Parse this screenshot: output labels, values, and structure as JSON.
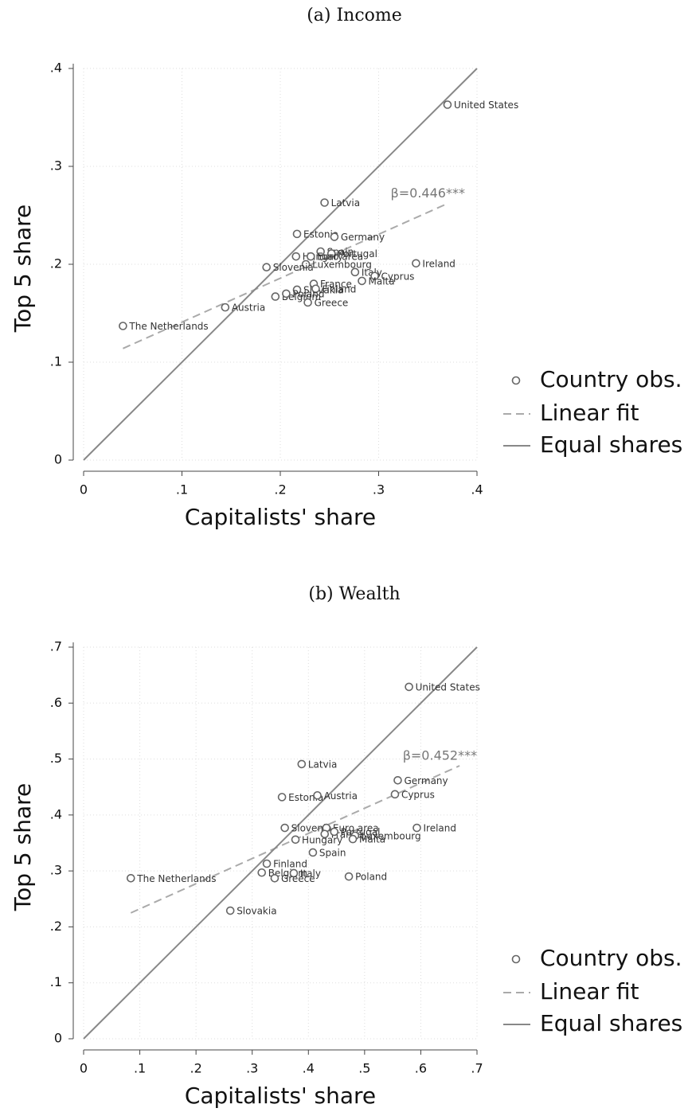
{
  "chart_data": [
    {
      "type": "scatter",
      "title": "(a) Income",
      "xlabel": "Capitalists' share",
      "ylabel": "Top 5 share",
      "xlim": [
        0,
        0.4
      ],
      "ylim": [
        0,
        0.4
      ],
      "xticks": [
        0,
        {
          "value": 0.1,
          "label": ".1"
        },
        {
          "value": 0.2,
          "label": ".2"
        },
        {
          "value": 0.3,
          "label": ".3"
        },
        {
          "value": 0.4,
          "label": ".4"
        }
      ],
      "yticks": [
        0,
        {
          "value": 0.1,
          "label": ".1"
        },
        {
          "value": 0.2,
          "label": ".2"
        },
        {
          "value": 0.3,
          "label": ".3"
        },
        {
          "value": 0.4,
          "label": ".4"
        }
      ],
      "grid": true,
      "legend": "right",
      "annotation": "β=0.446***",
      "series": [
        {
          "name": "Country obs.",
          "color": "#666666",
          "labels": [
            "United States",
            "Latvia",
            "Estonia",
            "Germany",
            "Spain",
            "Portugal",
            "Hungary",
            "Euro area",
            "Luxembourg",
            "Slovenia",
            "Ireland",
            "Italy",
            "Cyprus",
            "Malta",
            "France",
            "Slovakia",
            "Finland",
            "Belgium",
            "Poland",
            "Greece",
            "Austria",
            "The Netherlands"
          ],
          "x": [
            0.37,
            0.245,
            0.217,
            0.255,
            0.241,
            0.252,
            0.216,
            0.231,
            0.226,
            0.186,
            0.338,
            0.276,
            0.296,
            0.283,
            0.234,
            0.217,
            0.236,
            0.195,
            0.206,
            0.228,
            0.144,
            0.04
          ],
          "values": [
            0.363,
            0.263,
            0.231,
            0.228,
            0.213,
            0.211,
            0.208,
            0.208,
            0.2,
            0.197,
            0.201,
            0.192,
            0.188,
            0.183,
            0.18,
            0.174,
            0.175,
            0.167,
            0.17,
            0.161,
            0.156,
            0.137
          ]
        },
        {
          "name": "Linear fit",
          "color": "#aaaaaa",
          "dash": true,
          "x": [
            0.04,
            0.37
          ],
          "values": [
            0.114,
            0.262
          ]
        },
        {
          "name": "Equal shares",
          "color": "#888888",
          "x": [
            0,
            0.4
          ],
          "values": [
            0,
            0.4
          ]
        }
      ]
    },
    {
      "type": "scatter",
      "title": "(b) Wealth",
      "xlabel": "Capitalists' share",
      "ylabel": "Top 5 share",
      "xlim": [
        0,
        0.7
      ],
      "ylim": [
        0,
        0.7
      ],
      "xticks": [
        0,
        {
          "value": 0.1,
          "label": ".1"
        },
        {
          "value": 0.2,
          "label": ".2"
        },
        {
          "value": 0.3,
          "label": ".3"
        },
        {
          "value": 0.4,
          "label": ".4"
        },
        {
          "value": 0.5,
          "label": ".5"
        },
        {
          "value": 0.6,
          "label": ".6"
        },
        {
          "value": 0.7,
          "label": ".7"
        }
      ],
      "yticks": [
        0,
        {
          "value": 0.1,
          "label": ".1"
        },
        {
          "value": 0.2,
          "label": ".2"
        },
        {
          "value": 0.3,
          "label": ".3"
        },
        {
          "value": 0.4,
          "label": ".4"
        },
        {
          "value": 0.5,
          "label": ".5"
        },
        {
          "value": 0.6,
          "label": ".6"
        },
        {
          "value": 0.7,
          "label": ".7"
        }
      ],
      "grid": true,
      "legend": "right",
      "annotation": "β=0.452***",
      "series": [
        {
          "name": "Country obs.",
          "color": "#666666",
          "labels": [
            "United States",
            "Latvia",
            "Germany",
            "Estonia",
            "Austria",
            "Cyprus",
            "Slovenia",
            "Euro area",
            "Ireland",
            "France",
            "Portugal",
            "Luxembourg",
            "Malta",
            "Hungary",
            "Spain",
            "Finland",
            "Belgium",
            "Italy",
            "Greece",
            "Poland",
            "The Netherlands",
            "Slovakia"
          ],
          "x": [
            0.579,
            0.388,
            0.559,
            0.353,
            0.416,
            0.554,
            0.358,
            0.432,
            0.593,
            0.429,
            0.446,
            0.483,
            0.479,
            0.377,
            0.408,
            0.326,
            0.317,
            0.374,
            0.34,
            0.472,
            0.084,
            0.261
          ],
          "values": [
            0.629,
            0.491,
            0.462,
            0.432,
            0.435,
            0.437,
            0.377,
            0.377,
            0.377,
            0.366,
            0.37,
            0.363,
            0.357,
            0.356,
            0.333,
            0.313,
            0.297,
            0.296,
            0.287,
            0.29,
            0.287,
            0.229
          ]
        },
        {
          "name": "Linear fit",
          "color": "#aaaaaa",
          "dash": true,
          "x": [
            0.084,
            0.669
          ],
          "values": [
            0.225,
            0.488
          ]
        },
        {
          "name": "Equal shares",
          "color": "#888888",
          "x": [
            0,
            0.7
          ],
          "values": [
            0,
            0.7
          ]
        }
      ]
    }
  ]
}
